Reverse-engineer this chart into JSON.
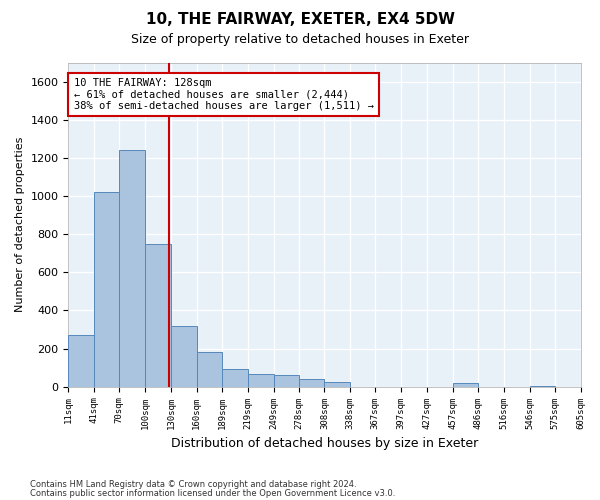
{
  "title": "10, THE FAIRWAY, EXETER, EX4 5DW",
  "subtitle": "Size of property relative to detached houses in Exeter",
  "xlabel": "Distribution of detached houses by size in Exeter",
  "ylabel": "Number of detached properties",
  "footnote1": "Contains HM Land Registry data © Crown copyright and database right 2024.",
  "footnote2": "Contains public sector information licensed under the Open Government Licence v3.0.",
  "bar_color": "#aac4df",
  "bar_edge_color": "#5588bb",
  "background_color": "#e8f0f8",
  "grid_color": "#ffffff",
  "annotation_line_color": "#cc0000",
  "annotation_box_color": "#cc0000",
  "annotation_text": "10 THE FAIRWAY: 128sqm\n← 61% of detached houses are smaller (2,444)\n38% of semi-detached houses are larger (1,511) →",
  "property_size": 128,
  "bin_edges": [
    11,
    41,
    70,
    100,
    130,
    160,
    189,
    219,
    249,
    278,
    308,
    338,
    367,
    397,
    427,
    457,
    486,
    516,
    546,
    575,
    605
  ],
  "bar_heights": [
    270,
    1020,
    1240,
    750,
    320,
    180,
    95,
    65,
    60,
    40,
    25,
    0,
    0,
    0,
    0,
    20,
    0,
    0,
    5,
    0
  ],
  "ylim": [
    0,
    1700
  ],
  "yticks": [
    0,
    200,
    400,
    600,
    800,
    1000,
    1200,
    1400,
    1600
  ]
}
